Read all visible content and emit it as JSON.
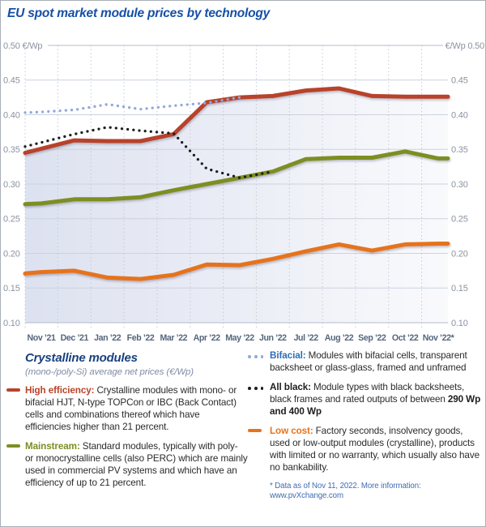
{
  "title": "EU spot market module prices by technology",
  "chart_data": {
    "type": "line",
    "title": "EU spot market module prices by technology",
    "y_unit": "€/Wp",
    "ylim": [
      0.1,
      0.5
    ],
    "y_tick_step": 0.05,
    "y_tick_labels": [
      "0.50",
      "0.45",
      "0.40",
      "0.35",
      "0.30",
      "0.25",
      "0.20",
      "0.15",
      "0.10"
    ],
    "x_labels": [
      "Nov ’21",
      "Dec ’21",
      "Jan ’22",
      "Feb ’22",
      "Mar ’22",
      "Apr ’22",
      "May ’22",
      "Jun ’22",
      "Jul ’22",
      "Aug ’22",
      "Sep ’22",
      "Oct ’22",
      "Nov ’22*"
    ],
    "grid": true,
    "legend_position": "bottom",
    "background": "light lavender-to-white gradient fill under top line",
    "series": [
      {
        "name": "High efficiency",
        "style": "solid",
        "color": "#b8432a",
        "edge_start": 0.345,
        "values": [
          0.351,
          0.363,
          0.362,
          0.362,
          0.372,
          0.418,
          0.425,
          0.427,
          0.435,
          0.438,
          0.427,
          0.426,
          0.426
        ]
      },
      {
        "name": "Mainstream",
        "style": "solid",
        "color": "#7d8e23",
        "edge_start": 0.271,
        "values": [
          0.272,
          0.278,
          0.278,
          0.281,
          0.291,
          0.3,
          0.309,
          0.318,
          0.336,
          0.338,
          0.338,
          0.347,
          0.337
        ]
      },
      {
        "name": "Low cost",
        "style": "solid",
        "color": "#e6731c",
        "edge_start": 0.171,
        "values": [
          0.173,
          0.175,
          0.165,
          0.163,
          0.169,
          0.184,
          0.183,
          0.192,
          0.203,
          0.213,
          0.204,
          0.213,
          0.214
        ]
      },
      {
        "name": "Bifacial",
        "style": "dotted",
        "color": "#91a8dc",
        "edge_start": 0.403,
        "values": [
          0.404,
          0.407,
          0.415,
          0.408,
          0.413,
          0.417,
          0.425
        ]
      },
      {
        "name": "All black",
        "style": "dotted",
        "color": "#1d1d1d",
        "edge_start": 0.354,
        "values": [
          0.36,
          0.372,
          0.382,
          0.377,
          0.373,
          0.322,
          0.309,
          0.318
        ]
      }
    ]
  },
  "axis": {
    "top_left_label": "0.50 €/Wp",
    "top_right_label": "€/Wp 0.50"
  },
  "legend": {
    "heading": "Crystalline modules",
    "subheading": "(mono-/poly-Si) average net prices (€/Wp)",
    "entries": {
      "high_efficiency": {
        "label": "High efficiency:",
        "text": "Crystalline modules with mono- or bifacial HJT, N-type TOPCon or IBC (Back Contact) cells and combinations thereof which have efficiencies higher than 21 percent."
      },
      "mainstream": {
        "label": "Mainstream:",
        "text": "Standard modules, typically with poly- or monocrystalline cells (also PERC) which are mainly used in commercial PV systems and which have an efficiency of up to 21 percent."
      },
      "bifacial": {
        "label": "Bifacial:",
        "text": "Modules with bifacial cells, transparent backsheet or glass-glass, framed and unframed"
      },
      "all_black": {
        "label": "All black:",
        "text": "Module types with black backsheets, black frames and rated outputs of between",
        "bold_tail": "290 Wp and 400 Wp"
      },
      "low_cost": {
        "label": "Low cost:",
        "text": "Factory seconds, insolvency goods, used or low-output modules (crystalline), products with limited or no warranty, which usually also have no bankability."
      }
    },
    "footnote": "* Data as of Nov 11, 2022. More information: www.pvXchange.com"
  },
  "colors": {
    "title_blue": "#1550a6",
    "legend_heading_navy": "#18427e",
    "axis_label_grey": "#8a92a2",
    "month_label_slate": "#55667c",
    "grid_line": "#ccd2de",
    "high_efficiency_red": "#b8432a",
    "mainstream_green": "#7d8e23",
    "low_cost_orange": "#e6731c",
    "bifacial_blue_dots": "#91a8dc",
    "bifacial_label_blue": "#2e6cb5",
    "all_black": "#1d1d1d",
    "footnote_blue": "#3f6cb4"
  }
}
